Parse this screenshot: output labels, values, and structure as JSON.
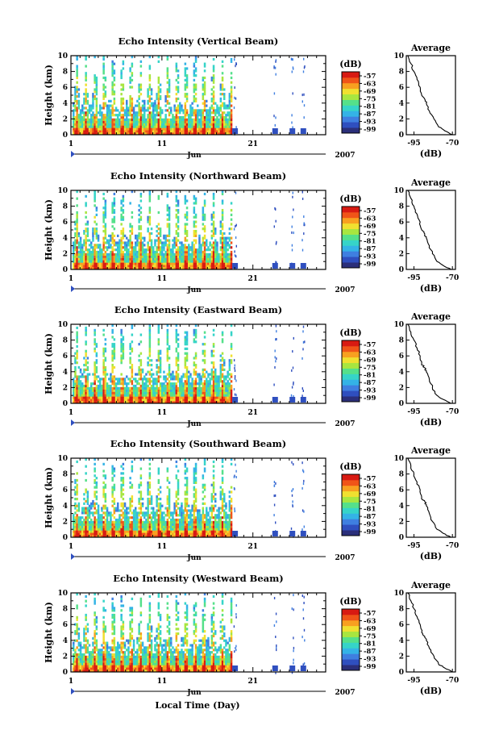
{
  "chart_data": [
    {
      "type": "heatmap",
      "title": "Echo Intensity (Vertical Beam)",
      "ylabel": "Height (km)",
      "ylim": [
        0,
        10
      ],
      "yticks": [
        "0",
        "2",
        "4",
        "6",
        "8",
        "10"
      ],
      "xticks": [
        "1",
        "11",
        "21"
      ],
      "xlim": [
        1,
        29
      ],
      "month_label": "Jun",
      "year_label": "2007",
      "colorbar": {
        "label": "(dB)",
        "ticks": [
          "-57",
          "-63",
          "-69",
          "-75",
          "-81",
          "-87",
          "-93",
          "-99"
        ]
      },
      "data_end_day": 18.7,
      "sparse_days": [
        19.0,
        23.4,
        25.3,
        26.5
      ],
      "average": {
        "title": "Average",
        "xlabel": "(dB)",
        "xticks": [
          "-95",
          "-70"
        ],
        "xlim": [
          -100,
          -68
        ],
        "yticks": [
          "0",
          "2",
          "4",
          "6",
          "8",
          "10"
        ],
        "ylim": [
          0,
          10
        ],
        "profile": [
          [
            -70,
            0.0
          ],
          [
            -75,
            0.5
          ],
          [
            -79,
            1.0
          ],
          [
            -82,
            2.0
          ],
          [
            -85,
            3.0
          ],
          [
            -87,
            4.0
          ],
          [
            -88,
            4.5
          ],
          [
            -90,
            5.0
          ],
          [
            -91,
            6.0
          ],
          [
            -93,
            7.0
          ],
          [
            -95,
            8.0
          ],
          [
            -97,
            9.0
          ],
          [
            -99,
            10.0
          ]
        ]
      }
    },
    {
      "type": "heatmap",
      "title": "Echo Intensity (Northward Beam)",
      "ylabel": "Height (km)",
      "ylim": [
        0,
        10
      ],
      "yticks": [
        "0",
        "2",
        "4",
        "6",
        "8",
        "10"
      ],
      "xticks": [
        "1",
        "11",
        "21"
      ],
      "xlim": [
        1,
        29
      ],
      "month_label": "Jun",
      "year_label": "2007",
      "colorbar": {
        "label": "(dB)",
        "ticks": [
          "-57",
          "-63",
          "-69",
          "-75",
          "-81",
          "-87",
          "-93",
          "-99"
        ]
      },
      "data_end_day": 18.7,
      "sparse_days": [
        19.0,
        23.4,
        25.3,
        26.5
      ],
      "average": {
        "title": "Average",
        "xlabel": "(dB)",
        "xticks": [
          "-95",
          "-70"
        ],
        "xlim": [
          -100,
          -68
        ],
        "yticks": [
          "0",
          "2",
          "4",
          "6",
          "8",
          "10"
        ],
        "ylim": [
          0,
          10
        ],
        "profile": [
          [
            -71,
            0.0
          ],
          [
            -76,
            0.5
          ],
          [
            -80,
            1.0
          ],
          [
            -83,
            2.0
          ],
          [
            -85,
            3.0
          ],
          [
            -87,
            4.0
          ],
          [
            -88,
            4.5
          ],
          [
            -90,
            5.0
          ],
          [
            -91,
            6.0
          ],
          [
            -93,
            7.0
          ],
          [
            -95,
            8.0
          ],
          [
            -97,
            9.0
          ],
          [
            -99,
            10.0
          ]
        ]
      }
    },
    {
      "type": "heatmap",
      "title": "Echo Intensity (Eastward Beam)",
      "ylabel": "Height (km)",
      "ylim": [
        0,
        10
      ],
      "yticks": [
        "0",
        "2",
        "4",
        "6",
        "8",
        "10"
      ],
      "xticks": [
        "1",
        "11",
        "21"
      ],
      "xlim": [
        1,
        29
      ],
      "month_label": "Jun",
      "year_label": "2007",
      "colorbar": {
        "label": "(dB)",
        "ticks": [
          "-57",
          "-63",
          "-69",
          "-75",
          "-81",
          "-87",
          "-93",
          "-99"
        ]
      },
      "data_end_day": 18.7,
      "sparse_days": [
        19.0,
        23.4,
        25.3,
        26.5
      ],
      "average": {
        "title": "Average",
        "xlabel": "(dB)",
        "xticks": [
          "-95",
          "-70"
        ],
        "xlim": [
          -100,
          -68
        ],
        "yticks": [
          "0",
          "2",
          "4",
          "6",
          "8",
          "10"
        ],
        "ylim": [
          0,
          10
        ],
        "profile": [
          [
            -71,
            0.0
          ],
          [
            -76,
            0.5
          ],
          [
            -80,
            1.0
          ],
          [
            -83,
            2.0
          ],
          [
            -85,
            3.0
          ],
          [
            -87,
            4.0
          ],
          [
            -88,
            4.5
          ],
          [
            -90,
            5.0
          ],
          [
            -91,
            6.0
          ],
          [
            -93,
            7.0
          ],
          [
            -95,
            8.0
          ],
          [
            -97,
            9.0
          ],
          [
            -99,
            10.0
          ]
        ]
      }
    },
    {
      "type": "heatmap",
      "title": "Echo Intensity (Southward Beam)",
      "ylabel": "Height (km)",
      "ylim": [
        0,
        10
      ],
      "yticks": [
        "0",
        "2",
        "4",
        "6",
        "8",
        "10"
      ],
      "xticks": [
        "1",
        "11",
        "21"
      ],
      "xlim": [
        1,
        29
      ],
      "month_label": "Jun",
      "year_label": "2007",
      "colorbar": {
        "label": "(dB)",
        "ticks": [
          "-57",
          "-63",
          "-69",
          "-75",
          "-81",
          "-87",
          "-93",
          "-99"
        ]
      },
      "data_end_day": 18.7,
      "sparse_days": [
        19.0,
        23.4,
        25.3,
        26.5
      ],
      "average": {
        "title": "Average",
        "xlabel": "(dB)",
        "xticks": [
          "-95",
          "-70"
        ],
        "xlim": [
          -100,
          -68
        ],
        "yticks": [
          "0",
          "2",
          "4",
          "6",
          "8",
          "10"
        ],
        "ylim": [
          0,
          10
        ],
        "profile": [
          [
            -71,
            0.0
          ],
          [
            -76,
            0.5
          ],
          [
            -80,
            1.0
          ],
          [
            -83,
            2.0
          ],
          [
            -85,
            3.0
          ],
          [
            -87,
            4.0
          ],
          [
            -88,
            4.5
          ],
          [
            -90,
            5.0
          ],
          [
            -91,
            6.0
          ],
          [
            -93,
            7.0
          ],
          [
            -95,
            8.0
          ],
          [
            -97,
            9.0
          ],
          [
            -99,
            10.0
          ]
        ]
      }
    },
    {
      "type": "heatmap",
      "title": "Echo Intensity (Westward Beam)",
      "ylabel": "Height (km)",
      "ylim": [
        0,
        10
      ],
      "yticks": [
        "0",
        "2",
        "4",
        "6",
        "8",
        "10"
      ],
      "xticks": [
        "1",
        "11",
        "21"
      ],
      "xlim": [
        1,
        29
      ],
      "month_label": "Jun",
      "year_label": "2007",
      "colorbar": {
        "label": "(dB)",
        "ticks": [
          "-57",
          "-63",
          "-69",
          "-75",
          "-81",
          "-87",
          "-93",
          "-99"
        ]
      },
      "data_end_day": 18.7,
      "sparse_days": [
        19.0,
        23.4,
        25.3,
        26.5
      ],
      "average": {
        "title": "Average",
        "xlabel": "(dB)",
        "xticks": [
          "-95",
          "-70"
        ],
        "xlim": [
          -100,
          -68
        ],
        "yticks": [
          "0",
          "2",
          "4",
          "6",
          "8",
          "10"
        ],
        "ylim": [
          0,
          10
        ],
        "profile": [
          [
            -70,
            0.0
          ],
          [
            -75,
            0.5
          ],
          [
            -79,
            1.0
          ],
          [
            -82,
            2.0
          ],
          [
            -85,
            3.0
          ],
          [
            -87,
            4.0
          ],
          [
            -88,
            4.5
          ],
          [
            -90,
            5.0
          ],
          [
            -91,
            6.0
          ],
          [
            -93,
            7.0
          ],
          [
            -95,
            8.0
          ],
          [
            -97,
            9.0
          ],
          [
            -99,
            10.0
          ]
        ]
      }
    }
  ],
  "figure": {
    "xlabel": "Local Time (Day)"
  }
}
